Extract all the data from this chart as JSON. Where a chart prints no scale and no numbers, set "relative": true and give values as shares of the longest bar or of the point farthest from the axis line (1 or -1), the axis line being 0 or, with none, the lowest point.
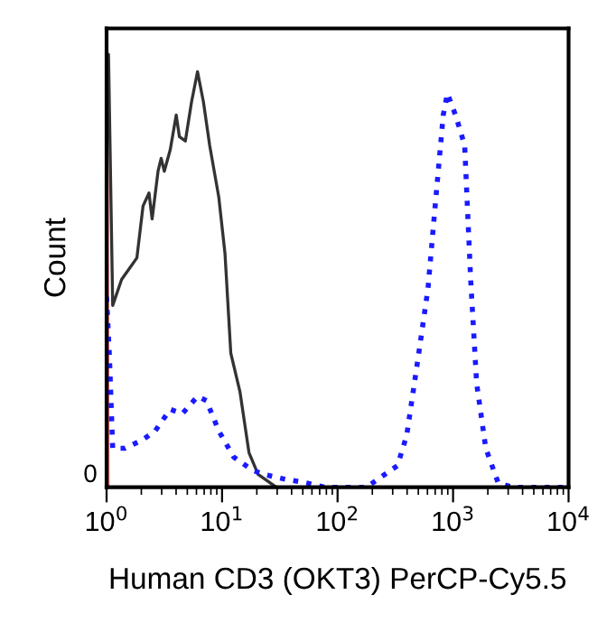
{
  "chart_data": {
    "type": "line",
    "relative": true,
    "xlabel": "Human CD3 (OKT3) PerCP-Cy5.5",
    "ylabel": "Count",
    "log": "x",
    "xlim": [
      1,
      10000
    ],
    "xticks": [
      {
        "value": 1,
        "label": "10$^{0}$"
      },
      {
        "value": 10,
        "label": "10$^{1}$"
      },
      {
        "value": 100,
        "label": "10$^{2}$"
      },
      {
        "value": 1000,
        "label": "10$^{3}$"
      },
      {
        "value": 10000,
        "label": "10$^{4}$"
      }
    ],
    "annotations": [
      "0"
    ],
    "grid": false,
    "legend": false,
    "series": [
      {
        "color": "#e06060",
        "line_style": "solid",
        "x": [
          1.0,
          1.01,
          1.03
        ],
        "values": [
          0,
          1.0,
          0
        ]
      },
      {
        "color": "#333333",
        "line_style": "solid",
        "x": [
          1.0,
          1.04,
          1.13,
          1.35,
          1.62,
          1.83,
          2.07,
          2.33,
          2.48,
          2.79,
          2.97,
          3.16,
          3.56,
          4.01,
          4.27,
          4.81,
          5.44,
          6.13,
          6.9,
          7.81,
          9.37,
          10.6,
          11.9,
          14.3,
          17.1,
          20.5,
          29.5,
          111
        ],
        "values": [
          1.0,
          1.0,
          0.42,
          0.48,
          0.51,
          0.53,
          0.65,
          0.68,
          0.62,
          0.73,
          0.76,
          0.73,
          0.78,
          0.86,
          0.81,
          0.8,
          0.89,
          0.96,
          0.89,
          0.79,
          0.67,
          0.54,
          0.31,
          0.22,
          0.08,
          0.03,
          0,
          0
        ]
      },
      {
        "color": "#1a1aff",
        "line_style": "dotted",
        "x": [
          1.0,
          1.06,
          1.13,
          1.44,
          2.07,
          2.63,
          3.56,
          4.53,
          6.13,
          7.33,
          9.37,
          12.6,
          18.1,
          23.0,
          33.3,
          53.9,
          77.6,
          178,
          330,
          397,
          505,
          607,
          684,
          822,
          893,
          1050,
          1260,
          1420,
          1600,
          1920,
          2460,
          3300,
          10000
        ],
        "values": [
          0.44,
          0.3,
          0.09,
          0.09,
          0.11,
          0.13,
          0.18,
          0.17,
          0.21,
          0.2,
          0.13,
          0.07,
          0.04,
          0.03,
          0.02,
          0.01,
          0,
          0,
          0.05,
          0.12,
          0.31,
          0.46,
          0.62,
          0.86,
          0.91,
          0.86,
          0.79,
          0.48,
          0.24,
          0.09,
          0.01,
          0,
          0
        ]
      }
    ]
  }
}
